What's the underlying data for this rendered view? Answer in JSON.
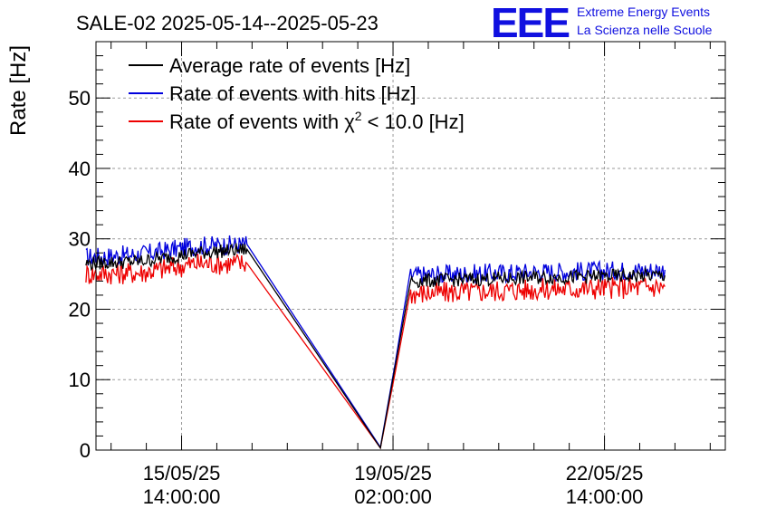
{
  "header": {
    "title": "SALE-02 2025-05-14--2025-05-23",
    "logo_text": "EEE",
    "logo_line1": "Extreme Energy Events",
    "logo_line2": "La Scienza nelle Scuole"
  },
  "colors": {
    "average": "#000000",
    "hits": "#0000dd",
    "chi2": "#ee0000",
    "logo": "#1010e0"
  },
  "chart_data": {
    "type": "line",
    "title": "SALE-02 2025-05-14--2025-05-23",
    "ylabel": "Rate [Hz]",
    "xlabel": "",
    "ylim": [
      0,
      58
    ],
    "yticks": [
      0,
      10,
      20,
      30,
      40,
      50
    ],
    "xlim_hours": [
      -34,
      216
    ],
    "xticks": [
      {
        "hours": 0,
        "line1": "15/05/25",
        "line2": "14:00:00"
      },
      {
        "hours": 84,
        "line1": "19/05/25",
        "line2": "02:00:00"
      },
      {
        "hours": 168,
        "line1": "22/05/25",
        "line2": "14:00:00"
      }
    ],
    "grid": true,
    "legend_position": "top-left",
    "series": [
      {
        "name": "Average rate of events [Hz]",
        "key": "average",
        "points": [
          [
            -38,
            26.5
          ],
          [
            -16,
            26.8
          ],
          [
            6,
            28.0
          ],
          [
            26,
            28.5
          ],
          [
            79,
            0.3
          ],
          [
            91,
            24.0
          ],
          [
            140,
            24.5
          ],
          [
            192,
            24.8
          ]
        ]
      },
      {
        "name": "Rate of events with hits [Hz]",
        "key": "hits",
        "points": [
          [
            -38,
            27.4
          ],
          [
            -16,
            27.8
          ],
          [
            6,
            29.0
          ],
          [
            26,
            29.2
          ],
          [
            79,
            0.4
          ],
          [
            91,
            24.8
          ],
          [
            140,
            25.3
          ],
          [
            192,
            25.6
          ]
        ]
      },
      {
        "name": "Rate of events with χ² < 10.0 [Hz]",
        "key": "chi2",
        "points": [
          [
            -38,
            25.0
          ],
          [
            -16,
            25.2
          ],
          [
            6,
            26.5
          ],
          [
            26,
            26.5
          ],
          [
            79,
            0.3
          ],
          [
            91,
            22.2
          ],
          [
            140,
            22.8
          ],
          [
            192,
            23.2
          ]
        ]
      }
    ],
    "legend": [
      {
        "label": "Average rate of events [Hz]",
        "key": "average"
      },
      {
        "label": "Rate of events with hits [Hz]",
        "key": "hits"
      },
      {
        "label_pre": "Rate of events with χ",
        "label_sup": "2",
        "label_post": " < 10.0 [Hz]",
        "key": "chi2"
      }
    ]
  }
}
